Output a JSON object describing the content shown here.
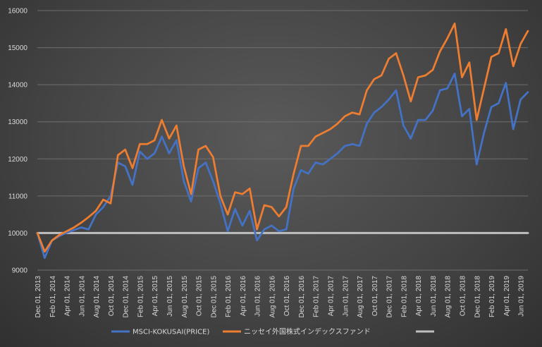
{
  "chart_data": {
    "type": "line",
    "title": "",
    "xlabel": "",
    "ylabel": "",
    "ylim": [
      9000,
      16000
    ],
    "y_ticks": [
      9000,
      10000,
      11000,
      12000,
      13000,
      14000,
      15000,
      16000
    ],
    "grid": "horizontal",
    "legend_position": "bottom",
    "x_tick_labels": [
      "Dec 01, 2013",
      "Feb 01, 2014",
      "Apr 01, 2014",
      "Jun 01, 2014",
      "Aug 01, 2014",
      "Oct 01, 2014",
      "Dec 01, 2014",
      "Feb 01, 2015",
      "Apr 01, 2015",
      "Jun 01, 2015",
      "Aug 01, 2015",
      "Oct 01, 2015",
      "Dec 01, 2015",
      "Feb 01, 2016",
      "Apr 01, 2016",
      "Jun 01, 2016",
      "Aug 01, 2016",
      "Oct 01, 2016",
      "Dec 01, 2016",
      "Feb 01, 2017",
      "Apr 01, 2017",
      "Jun 01, 2017",
      "Aug 01, 2017",
      "Oct 01, 2017",
      "Dec 01, 2017",
      "Feb 01, 2018",
      "Apr 01, 2018",
      "Jun 01, 2018",
      "Aug 01, 2018",
      "Oct 01, 2018",
      "Dec 01, 2018",
      "Feb 01, 2019",
      "Apr 01, 2019",
      "Jun 01, 2019"
    ],
    "x": [
      "2013-12",
      "2014-01",
      "2014-02",
      "2014-03",
      "2014-04",
      "2014-05",
      "2014-06",
      "2014-07",
      "2014-08",
      "2014-09",
      "2014-10",
      "2014-11",
      "2014-12",
      "2015-01",
      "2015-02",
      "2015-03",
      "2015-04",
      "2015-05",
      "2015-06",
      "2015-07",
      "2015-08",
      "2015-09",
      "2015-10",
      "2015-11",
      "2015-12",
      "2016-01",
      "2016-02",
      "2016-03",
      "2016-04",
      "2016-05",
      "2016-06",
      "2016-07",
      "2016-08",
      "2016-09",
      "2016-10",
      "2016-11",
      "2016-12",
      "2017-01",
      "2017-02",
      "2017-03",
      "2017-04",
      "2017-05",
      "2017-06",
      "2017-07",
      "2017-08",
      "2017-09",
      "2017-10",
      "2017-11",
      "2017-12",
      "2018-01",
      "2018-02",
      "2018-03",
      "2018-04",
      "2018-05",
      "2018-06",
      "2018-07",
      "2018-08",
      "2018-09",
      "2018-10",
      "2018-11",
      "2018-12",
      "2019-01",
      "2019-02",
      "2019-03",
      "2019-04",
      "2019-05",
      "2019-06",
      "2019-07"
    ],
    "series": [
      {
        "name": "MSCI-KOKUSAI(PRICE)",
        "color": "#4472c4",
        "values": [
          10000,
          9330,
          9800,
          9920,
          10010,
          10080,
          10150,
          10100,
          10500,
          10700,
          11000,
          11900,
          11800,
          11300,
          12200,
          12000,
          12150,
          12600,
          12150,
          12500,
          11400,
          10850,
          11750,
          11900,
          11400,
          10800,
          10050,
          10650,
          10200,
          10600,
          9800,
          10100,
          10200,
          10050,
          10100,
          11200,
          11700,
          11600,
          11900,
          11850,
          12000,
          12150,
          12350,
          12400,
          12350,
          12950,
          13250,
          13400,
          13600,
          13850,
          12900,
          12550,
          13050,
          13050,
          13300,
          13850,
          13900,
          14300,
          13150,
          13350,
          11850,
          12700,
          13400,
          13500,
          14050,
          12800,
          13600,
          13800
        ]
      },
      {
        "name": "ニッセイ外国株式インデックスファンド",
        "color": "#ed7d31",
        "values": [
          10000,
          9500,
          9800,
          9950,
          10050,
          10150,
          10280,
          10430,
          10600,
          10900,
          10800,
          12100,
          12250,
          11750,
          12400,
          12400,
          12500,
          13050,
          12550,
          12900,
          11800,
          11050,
          12250,
          12350,
          12050,
          11000,
          10500,
          11100,
          11050,
          11200,
          10100,
          10750,
          10700,
          10450,
          10700,
          11600,
          12350,
          12350,
          12600,
          12700,
          12800,
          12950,
          13150,
          13250,
          13200,
          13850,
          14150,
          14250,
          14700,
          14850,
          14250,
          13550,
          14200,
          14250,
          14400,
          14900,
          15250,
          15650,
          14200,
          14600,
          13050,
          13900,
          14750,
          14850,
          15500,
          14500,
          15100,
          15450
        ]
      },
      {
        "name": "",
        "color": "#bfbfbf",
        "values": [
          10000,
          10000,
          10000,
          10000,
          10000,
          10000,
          10000,
          10000,
          10000,
          10000,
          10000,
          10000,
          10000,
          10000,
          10000,
          10000,
          10000,
          10000,
          10000,
          10000,
          10000,
          10000,
          10000,
          10000,
          10000,
          10000,
          10000,
          10000,
          10000,
          10000,
          10000,
          10000,
          10000,
          10000,
          10000,
          10000,
          10000,
          10000,
          10000,
          10000,
          10000,
          10000,
          10000,
          10000,
          10000,
          10000,
          10000,
          10000,
          10000,
          10000,
          10000,
          10000,
          10000,
          10000,
          10000,
          10000,
          10000,
          10000,
          10000,
          10000,
          10000,
          10000,
          10000,
          10000,
          10000,
          10000,
          10000,
          10000
        ]
      }
    ]
  }
}
